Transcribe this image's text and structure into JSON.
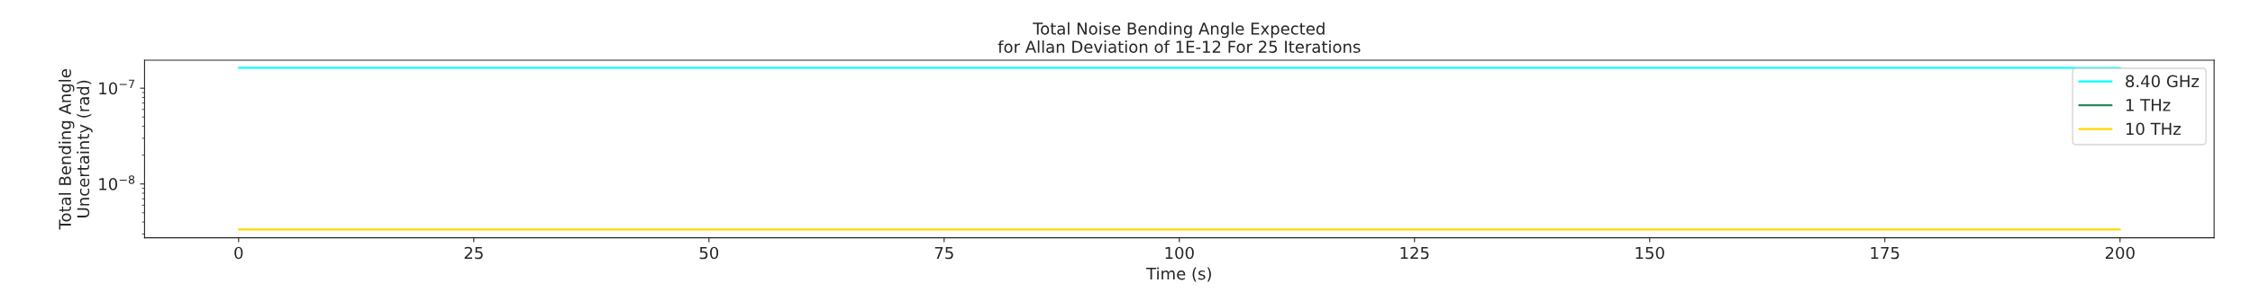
{
  "chart_data": {
    "type": "line",
    "title": "Total Noise Bending Angle Expected\nfor Allan Deviation of 1E-12 For 25 Iterations",
    "xlabel": "Time (s)",
    "ylabel": "Total Bending Angle\nUncertainty (rad)",
    "x": [
      0,
      200
    ],
    "series": [
      {
        "name": "8.40 GHz",
        "color": "#00ffff",
        "values": [
          1.63e-07,
          1.63e-07
        ]
      },
      {
        "name": "1 THz",
        "color": "#2e8b57",
        "values": [
          null,
          null
        ]
      },
      {
        "name": "10 THz",
        "color": "#ffd700",
        "values": [
          3.35e-09,
          3.35e-09
        ]
      }
    ],
    "log": "y",
    "xlim": [
      -10,
      210
    ],
    "ylim": [
      2.74e-09,
      1.96e-07
    ],
    "xticks": [
      0,
      25,
      50,
      75,
      100,
      125,
      150,
      175,
      200
    ],
    "yticks": [
      {
        "value": 1e-08,
        "label": "10$^{−8}$"
      },
      {
        "value": 1e-07,
        "label": "10$^{−7}$"
      }
    ],
    "legend": "top right",
    "grid": false
  }
}
